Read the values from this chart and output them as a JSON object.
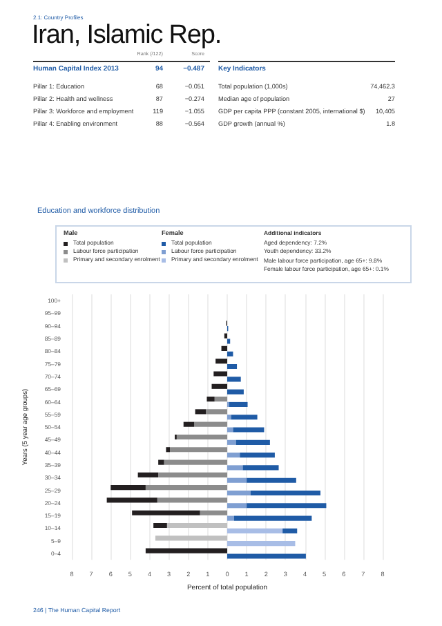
{
  "chart_data": [
    {
      "type": "other",
      "title": "Iran, Islamic Rep.",
      "subtitle": "2.1: Country Profiles",
      "annotations": [
        "Rank (/122)",
        "Score",
        "Human Capital Index 2013",
        "94",
        "−0.487",
        "Pillar 1: Education",
        "68",
        "−0.051",
        "Pillar 2: Health and wellness",
        "87",
        "−0.274",
        "Pillar 3: Workforce and employment",
        "119",
        "−1.055",
        "Pillar 4: Enabling environment",
        "88",
        "−0.564",
        "Key Indicators",
        "Total population (1,000s)",
        "74,462.3",
        "Median age of population",
        "27",
        "GDP per capita PPP (constant 2005, international $)",
        "10,405",
        "GDP growth (annual %)",
        "1.8",
        "246 | The Human Capital Report"
      ]
    },
    {
      "type": "bar",
      "orientation": "horizontal",
      "stacked": true,
      "title": "Education and workforce distribution",
      "xlabel": "Percent of total population",
      "ylabel": "Years (5 year age groups)",
      "grid": "x",
      "legend": "top",
      "annotations": [
        "Male",
        "Female",
        "Additional indicators",
        "Aged dependency: 7.2%",
        "Youth dependency: 33.2%",
        "Male labour force participation, age 65+: 9.8%",
        "Female labour force participation, age 65+: 0.1%"
      ],
      "categories": [
        "100+",
        "95–99",
        "90–94",
        "85–89",
        "80–84",
        "75–79",
        "70–74",
        "65–69",
        "60–64",
        "55–59",
        "50–54",
        "45–49",
        "40–44",
        "35–39",
        "30–34",
        "25–29",
        "20–24",
        "15–19",
        "10–14",
        "5–9",
        "0–4"
      ],
      "xlim": [
        -8,
        8
      ],
      "xticks": [
        {
          "value": -8,
          "label": "8"
        },
        {
          "value": -7,
          "label": "7"
        },
        {
          "value": -6,
          "label": "6"
        },
        {
          "value": -5,
          "label": "5"
        },
        {
          "value": -4,
          "label": "4"
        },
        {
          "value": -3,
          "label": "3"
        },
        {
          "value": -2,
          "label": "2"
        },
        {
          "value": -1,
          "label": "1"
        },
        0,
        1,
        2,
        3,
        4,
        5,
        6,
        7,
        8
      ],
      "series": [
        {
          "name": "Primary and secondary enrolment",
          "color": "#c0c0c0",
          "values": [
            null,
            null,
            null,
            null,
            null,
            null,
            null,
            null,
            null,
            null,
            null,
            null,
            null,
            null,
            null,
            null,
            null,
            null,
            -3.1,
            -3.7,
            null
          ]
        },
        {
          "name": "Labour force participation",
          "color": "#8c8c8c",
          "values": [
            null,
            null,
            null,
            null,
            null,
            null,
            null,
            null,
            -0.65,
            -1.1,
            -1.7,
            -2.6,
            -2.95,
            -3.25,
            -3.55,
            -4.2,
            -3.6,
            -1.4,
            null,
            null,
            null
          ]
        },
        {
          "name": "Total population",
          "color": "#231f20",
          "values": [
            null,
            null,
            -0.05,
            -0.15,
            -0.3,
            -0.6,
            -0.7,
            -0.8,
            -0.4,
            -0.55,
            -0.55,
            -0.1,
            -0.2,
            -0.3,
            -1.05,
            -1.8,
            -2.6,
            -3.5,
            -0.7,
            null,
            -4.2
          ]
        },
        {
          "name": "Primary and secondary enrolment",
          "color": "#a8bde6",
          "values": [
            null,
            null,
            null,
            null,
            null,
            null,
            null,
            null,
            null,
            null,
            null,
            null,
            null,
            null,
            null,
            null,
            null,
            null,
            2.85,
            3.5,
            null
          ]
        },
        {
          "name": "Labour force participation",
          "color": "#7f9fd2",
          "values": [
            null,
            null,
            null,
            null,
            null,
            null,
            null,
            null,
            0.1,
            0.2,
            0.3,
            0.45,
            0.65,
            0.8,
            1.0,
            1.2,
            1.0,
            0.35,
            null,
            null,
            null
          ]
        },
        {
          "name": "Total population",
          "color": "#1f5ba6",
          "values": [
            null,
            null,
            0.05,
            0.15,
            0.3,
            0.5,
            0.7,
            0.85,
            0.95,
            1.35,
            1.6,
            1.75,
            1.8,
            1.85,
            2.55,
            3.6,
            4.1,
            4.0,
            0.75,
            null,
            4.05
          ]
        }
      ]
    }
  ]
}
